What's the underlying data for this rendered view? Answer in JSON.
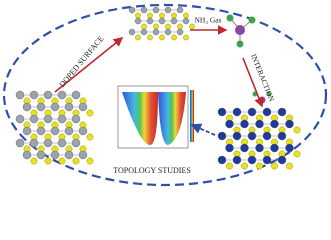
{
  "labels": {
    "doped_surface": "DOPED SURFACE",
    "gas": "NH₃ Gas",
    "interaction": "INTERACTION",
    "topology": "TOPOLOGY STUDIES"
  }
}
